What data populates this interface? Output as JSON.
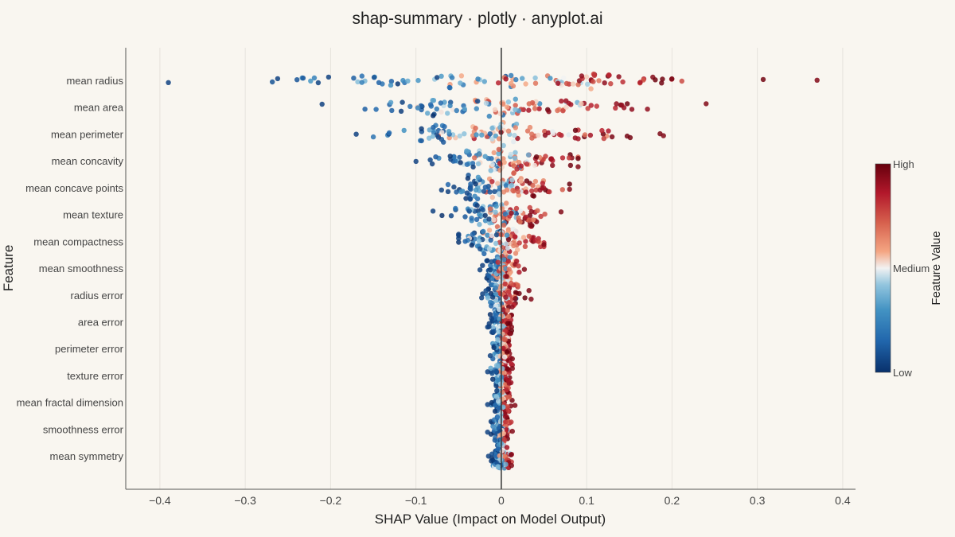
{
  "chart_data": {
    "type": "scatter",
    "subtype": "beeswarm",
    "title": "shap-summary · plotly · anyplot.ai",
    "xlabel": "SHAP Value (Impact on Model Output)",
    "ylabel": "Feature",
    "xlim": [
      -0.44,
      0.415
    ],
    "x_ticks": [
      -0.4,
      -0.3,
      -0.2,
      -0.1,
      0,
      0.1,
      0.2,
      0.3,
      0.4
    ],
    "x_tick_labels": [
      "−0.4",
      "−0.3",
      "−0.2",
      "−0.1",
      "0",
      "0.1",
      "0.2",
      "0.3",
      "0.4"
    ],
    "grid": true,
    "features": [
      {
        "name": "mean radius",
        "min": -0.39,
        "max": 0.37,
        "spread": 0.17
      },
      {
        "name": "mean area",
        "min": -0.21,
        "max": 0.24,
        "spread": 0.12
      },
      {
        "name": "mean perimeter",
        "min": -0.17,
        "max": 0.19,
        "spread": 0.11
      },
      {
        "name": "mean concavity",
        "min": -0.1,
        "max": 0.09,
        "spread": 0.055
      },
      {
        "name": "mean concave points",
        "min": -0.07,
        "max": 0.08,
        "spread": 0.045
      },
      {
        "name": "mean texture",
        "min": -0.08,
        "max": 0.07,
        "spread": 0.035
      },
      {
        "name": "mean compactness",
        "min": -0.05,
        "max": 0.05,
        "spread": 0.035
      },
      {
        "name": "mean smoothness",
        "min": -0.025,
        "max": 0.027,
        "spread": 0.013
      },
      {
        "name": "radius error",
        "min": -0.023,
        "max": 0.035,
        "spread": 0.014
      },
      {
        "name": "area error",
        "min": -0.016,
        "max": 0.012,
        "spread": 0.008
      },
      {
        "name": "perimeter error",
        "min": -0.013,
        "max": 0.013,
        "spread": 0.007
      },
      {
        "name": "texture error",
        "min": -0.016,
        "max": 0.013,
        "spread": 0.007
      },
      {
        "name": "mean fractal dimension",
        "min": -0.016,
        "max": 0.016,
        "spread": 0.007
      },
      {
        "name": "smoothness error",
        "min": -0.016,
        "max": 0.013,
        "spread": 0.007
      },
      {
        "name": "mean symmetry",
        "min": -0.015,
        "max": 0.012,
        "spread": 0.007
      }
    ],
    "points_per_feature": 100,
    "colorbar": {
      "title": "Feature Value",
      "tick_labels": [
        "High",
        "Medium",
        "Low"
      ],
      "colorscale": "RdBu_r"
    }
  },
  "colors": {
    "background": "#f9f6f0",
    "grid": "#e6e3dd",
    "zero_line": "#333333",
    "low": "#08306b",
    "mid": "#f2f2f2",
    "high": "#67000d"
  }
}
